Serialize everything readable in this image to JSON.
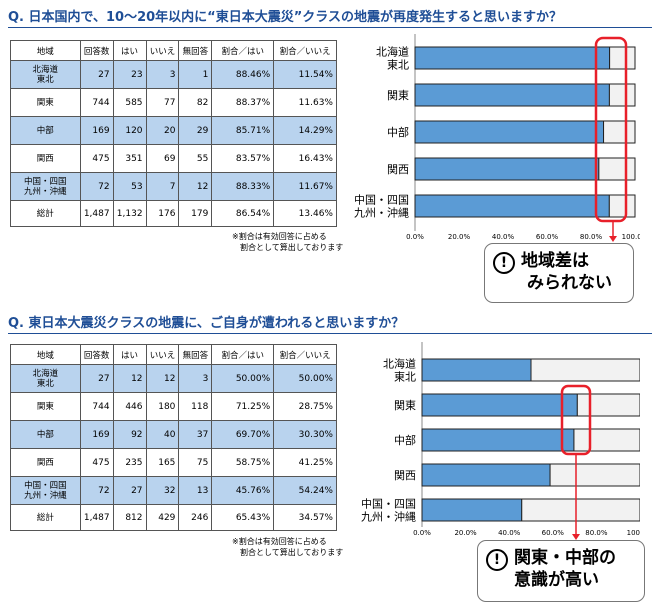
{
  "survey1": {
    "question": "Q. 日本国内で、10～20年以内に“東日本大震災”クラスの地震が再度発生すると思いますか？",
    "headers": [
      "地域",
      "回答数",
      "はい",
      "いいえ",
      "無回答",
      "割合／はい",
      "割合／いいえ"
    ],
    "rows": [
      {
        "region": [
          "北海道",
          "東北"
        ],
        "count": "27",
        "yes": "23",
        "no": "3",
        "na": "1",
        "yes_pct": "88.46%",
        "no_pct": "11.54%"
      },
      {
        "region": [
          "関東"
        ],
        "count": "744",
        "yes": "585",
        "no": "77",
        "na": "82",
        "yes_pct": "88.37%",
        "no_pct": "11.63%"
      },
      {
        "region": [
          "中部"
        ],
        "count": "169",
        "yes": "120",
        "no": "20",
        "na": "29",
        "yes_pct": "85.71%",
        "no_pct": "14.29%"
      },
      {
        "region": [
          "関西"
        ],
        "count": "475",
        "yes": "351",
        "no": "69",
        "na": "55",
        "yes_pct": "83.57%",
        "no_pct": "16.43%"
      },
      {
        "region": [
          "中国・四国",
          "九州・沖縄"
        ],
        "count": "72",
        "yes": "53",
        "no": "7",
        "na": "12",
        "yes_pct": "88.33%",
        "no_pct": "11.67%"
      }
    ],
    "total": {
      "label": "総計",
      "count": "1,487",
      "yes": "1,132",
      "no": "176",
      "na": "179",
      "yes_pct": "86.54%",
      "no_pct": "13.46%"
    },
    "note": [
      "※割合は有効回答に占める",
      "割合として算出しております"
    ],
    "callout": [
      "地域差は",
      "みられない"
    ]
  },
  "survey2": {
    "question": "Q. 東日本大震災クラスの地震に、ご自身が遭われると思いますか？",
    "headers": [
      "地域",
      "回答数",
      "はい",
      "いいえ",
      "無回答",
      "割合／はい",
      "割合／いいえ"
    ],
    "rows": [
      {
        "region": [
          "北海道",
          "東北"
        ],
        "count": "27",
        "yes": "12",
        "no": "12",
        "na": "3",
        "yes_pct": "50.00%",
        "no_pct": "50.00%"
      },
      {
        "region": [
          "関東"
        ],
        "count": "744",
        "yes": "446",
        "no": "180",
        "na": "118",
        "yes_pct": "71.25%",
        "no_pct": "28.75%"
      },
      {
        "region": [
          "中部"
        ],
        "count": "169",
        "yes": "92",
        "no": "40",
        "na": "37",
        "yes_pct": "69.70%",
        "no_pct": "30.30%"
      },
      {
        "region": [
          "関西"
        ],
        "count": "475",
        "yes": "235",
        "no": "165",
        "na": "75",
        "yes_pct": "58.75%",
        "no_pct": "41.25%"
      },
      {
        "region": [
          "中国・四国",
          "九州・沖縄"
        ],
        "count": "72",
        "yes": "27",
        "no": "32",
        "na": "13",
        "yes_pct": "45.76%",
        "no_pct": "54.24%"
      }
    ],
    "total": {
      "label": "総計",
      "count": "1,487",
      "yes": "812",
      "no": "429",
      "na": "246",
      "yes_pct": "65.43%",
      "no_pct": "34.57%"
    },
    "note": [
      "※割合は有効回答に占める",
      "割合として算出しております"
    ],
    "callout": [
      "関東・中部の",
      "意識が高い"
    ]
  },
  "chart_data": [
    {
      "type": "bar",
      "orientation": "horizontal",
      "stacked": true,
      "categories": [
        [
          "北海道",
          "東北"
        ],
        [
          "関東"
        ],
        [
          "中部"
        ],
        [
          "関西"
        ],
        [
          "中国・四国",
          "九州・沖縄"
        ]
      ],
      "series": [
        {
          "values": [
            88.46,
            88.37,
            85.71,
            83.57,
            88.33
          ],
          "color": "#5b9bd5"
        },
        {
          "values": [
            11.54,
            11.63,
            14.29,
            16.43,
            11.67
          ],
          "color": "#f2f2f2"
        }
      ],
      "xlim": [
        0,
        100
      ],
      "xticks": [
        "0.0%",
        "20.0%",
        "40.0%",
        "60.0%",
        "80.0%",
        "100.0%"
      ],
      "grid": false,
      "highlight_color": "#e8202a"
    },
    {
      "type": "bar",
      "orientation": "horizontal",
      "stacked": true,
      "categories": [
        [
          "北海道",
          "東北"
        ],
        [
          "関東"
        ],
        [
          "中部"
        ],
        [
          "関西"
        ],
        [
          "中国・四国",
          "九州・沖縄"
        ]
      ],
      "series": [
        {
          "values": [
            50.0,
            71.25,
            69.7,
            58.75,
            45.76
          ],
          "color": "#5b9bd5"
        },
        {
          "values": [
            50.0,
            28.75,
            30.3,
            41.25,
            54.24
          ],
          "color": "#f2f2f2"
        }
      ],
      "xlim": [
        0,
        100
      ],
      "xticks": [
        "0.0%",
        "20.0%",
        "40.0%",
        "60.0%",
        "80.0%",
        "100.0%"
      ],
      "grid": false,
      "highlight_color": "#e8202a"
    }
  ]
}
